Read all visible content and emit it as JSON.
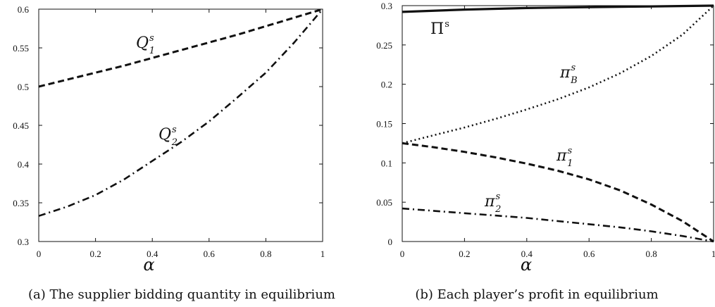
{
  "chart_data": [
    {
      "type": "line",
      "title": "",
      "caption": "(a) The supplier bidding quantity in equilibrium",
      "xlabel": "α",
      "ylabel": "",
      "xlim": [
        0,
        1
      ],
      "ylim": [
        0.3,
        0.6
      ],
      "xticks": [
        "0",
        "0.2",
        "0.4",
        "0.6",
        "0.8",
        "1"
      ],
      "yticks": [
        "0.3",
        "0.35",
        "0.4",
        "0.45",
        "0.5",
        "0.55",
        "0.6"
      ],
      "grid": false,
      "series": [
        {
          "name": "Q1s",
          "label": {
            "base": "Q",
            "sub": "1",
            "sup": "s"
          },
          "style": "dashed",
          "x": [
            0,
            0.1,
            0.2,
            0.3,
            0.4,
            0.5,
            0.6,
            0.7,
            0.8,
            0.9,
            1.0
          ],
          "y": [
            0.5,
            0.509,
            0.518,
            0.527,
            0.537,
            0.547,
            0.557,
            0.567,
            0.578,
            0.589,
            0.6
          ]
        },
        {
          "name": "Q2s",
          "label": {
            "base": "Q",
            "sub": "2",
            "sup": "s"
          },
          "style": "dashdot",
          "x": [
            0,
            0.1,
            0.2,
            0.3,
            0.4,
            0.5,
            0.6,
            0.7,
            0.8,
            0.9,
            1.0
          ],
          "y": [
            0.333,
            0.345,
            0.36,
            0.38,
            0.404,
            0.428,
            0.455,
            0.486,
            0.518,
            0.557,
            0.6
          ]
        }
      ]
    },
    {
      "type": "line",
      "title": "",
      "caption": "(b) Each player’s profit in equilibrium",
      "xlabel": "α",
      "ylabel": "",
      "xlim": [
        0,
        1
      ],
      "ylim": [
        0,
        0.3
      ],
      "xticks": [
        "0",
        "0.2",
        "0.4",
        "0.6",
        "0.8",
        "1"
      ],
      "yticks": [
        "0",
        "0.05",
        "0.1",
        "0.15",
        "0.2",
        "0.25",
        "0.3"
      ],
      "grid": false,
      "series": [
        {
          "name": "Πs",
          "label": {
            "base": "Π",
            "sub": "",
            "sup": "s"
          },
          "style": "solid",
          "x": [
            0,
            0.2,
            0.4,
            0.6,
            0.8,
            1.0
          ],
          "y": [
            0.292,
            0.295,
            0.297,
            0.298,
            0.299,
            0.3
          ]
        },
        {
          "name": "πBs",
          "label": {
            "base": "π",
            "sub": "B",
            "sup": "s"
          },
          "style": "dotted",
          "x": [
            0,
            0.1,
            0.2,
            0.3,
            0.4,
            0.5,
            0.6,
            0.7,
            0.8,
            0.9,
            1.0
          ],
          "y": [
            0.125,
            0.135,
            0.145,
            0.156,
            0.168,
            0.181,
            0.196,
            0.214,
            0.236,
            0.263,
            0.3
          ]
        },
        {
          "name": "π1s",
          "label": {
            "base": "π",
            "sub": "1",
            "sup": "s"
          },
          "style": "dashed",
          "x": [
            0,
            0.1,
            0.2,
            0.3,
            0.4,
            0.5,
            0.6,
            0.7,
            0.8,
            0.9,
            1.0
          ],
          "y": [
            0.125,
            0.12,
            0.114,
            0.107,
            0.099,
            0.09,
            0.079,
            0.065,
            0.047,
            0.026,
            0.0
          ]
        },
        {
          "name": "π2s",
          "label": {
            "base": "π",
            "sub": "2",
            "sup": "s"
          },
          "style": "dashdot",
          "x": [
            0,
            0.1,
            0.2,
            0.3,
            0.4,
            0.5,
            0.6,
            0.7,
            0.8,
            0.9,
            1.0
          ],
          "y": [
            0.042,
            0.039,
            0.036,
            0.033,
            0.03,
            0.026,
            0.022,
            0.018,
            0.013,
            0.007,
            0.0
          ]
        }
      ]
    }
  ]
}
